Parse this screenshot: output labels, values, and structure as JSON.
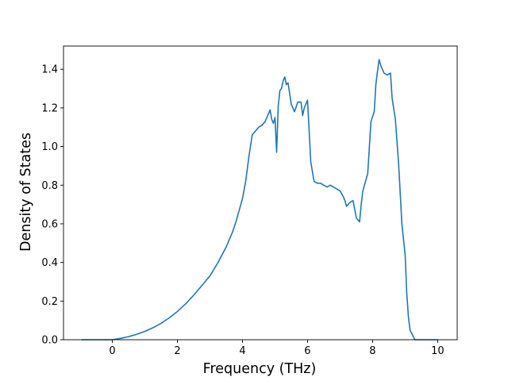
{
  "chart_data": {
    "type": "line",
    "title": "",
    "xlabel": "Frequency (THz)",
    "ylabel": "Density of States",
    "xlim": [
      -1.5,
      10.6
    ],
    "ylim": [
      0,
      1.52
    ],
    "xticks": [
      0,
      2,
      4,
      6,
      8,
      10
    ],
    "yticks": [
      0.0,
      0.2,
      0.4,
      0.6,
      0.8,
      1.0,
      1.2,
      1.4
    ],
    "xtick_labels": [
      "0",
      "2",
      "4",
      "6",
      "8",
      "10"
    ],
    "ytick_labels": [
      "0.0",
      "0.2",
      "0.4",
      "0.6",
      "0.8",
      "1.0",
      "1.2",
      "1.4"
    ],
    "grid": false,
    "line_color": "#1f77b4",
    "series": [
      {
        "x": [
          -0.95,
          -0.5,
          0.0,
          0.25,
          0.5,
          0.75,
          1.0,
          1.25,
          1.5,
          1.75,
          2.0,
          2.25,
          2.5,
          2.6,
          2.75,
          3.0,
          3.25,
          3.5,
          3.6,
          3.7,
          3.8,
          3.9,
          4.0,
          4.1,
          4.2,
          4.3,
          4.4,
          4.5,
          4.6,
          4.7,
          4.75,
          4.8,
          4.85,
          4.9,
          4.95,
          5.0,
          5.05,
          5.1,
          5.15,
          5.2,
          5.25,
          5.3,
          5.35,
          5.4,
          5.5,
          5.6,
          5.7,
          5.8,
          5.85,
          5.9,
          6.0,
          6.1,
          6.2,
          6.3,
          6.4,
          6.5,
          6.6,
          6.7,
          6.8,
          6.9,
          7.0,
          7.1,
          7.15,
          7.2,
          7.25,
          7.3,
          7.4,
          7.5,
          7.6,
          7.65,
          7.7,
          7.75,
          7.85,
          7.95,
          8.05,
          8.1,
          8.15,
          8.2,
          8.25,
          8.35,
          8.45,
          8.55,
          8.6,
          8.7,
          8.8,
          8.9,
          9.0,
          9.05,
          9.1,
          9.15,
          9.3,
          10.0
        ],
        "y": [
          0.0,
          0.0,
          0.0,
          0.007,
          0.016,
          0.028,
          0.043,
          0.062,
          0.085,
          0.113,
          0.146,
          0.185,
          0.23,
          0.25,
          0.28,
          0.33,
          0.4,
          0.48,
          0.52,
          0.56,
          0.61,
          0.67,
          0.73,
          0.82,
          0.95,
          1.06,
          1.08,
          1.1,
          1.11,
          1.13,
          1.15,
          1.17,
          1.19,
          1.14,
          1.12,
          1.15,
          0.97,
          1.21,
          1.29,
          1.3,
          1.34,
          1.36,
          1.32,
          1.33,
          1.22,
          1.18,
          1.23,
          1.23,
          1.16,
          1.2,
          1.24,
          0.92,
          0.82,
          0.81,
          0.81,
          0.8,
          0.79,
          0.8,
          0.79,
          0.78,
          0.77,
          0.74,
          0.72,
          0.69,
          0.7,
          0.71,
          0.72,
          0.63,
          0.61,
          0.7,
          0.77,
          0.8,
          0.86,
          1.13,
          1.18,
          1.32,
          1.39,
          1.45,
          1.42,
          1.38,
          1.37,
          1.38,
          1.25,
          1.14,
          0.91,
          0.6,
          0.44,
          0.24,
          0.12,
          0.05,
          0.0,
          0.0
        ]
      }
    ]
  }
}
